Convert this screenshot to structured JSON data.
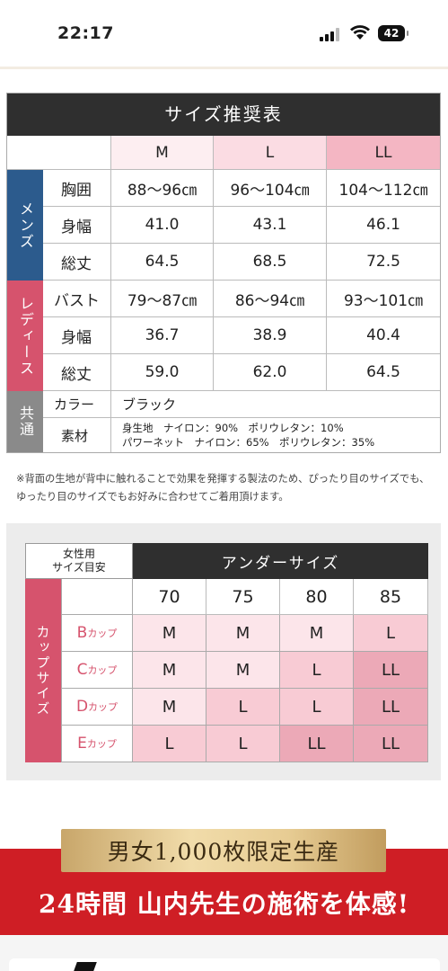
{
  "status": {
    "time": "22:17",
    "battery": "42"
  },
  "size_table": {
    "title": "サイズ推奨表",
    "sizes": [
      "M",
      "L",
      "LL"
    ],
    "groups": [
      {
        "name": "メンズ",
        "color": "#2c5b8d",
        "rows": [
          {
            "label": "胸囲",
            "values": [
              "88〜96㎝",
              "96〜104㎝",
              "104〜112㎝"
            ]
          },
          {
            "label": "身幅",
            "values": [
              "41.0",
              "43.1",
              "46.1"
            ]
          },
          {
            "label": "総丈",
            "values": [
              "64.5",
              "68.5",
              "72.5"
            ]
          }
        ]
      },
      {
        "name": "レディース",
        "color": "#d6536d",
        "rows": [
          {
            "label": "バスト",
            "values": [
              "79〜87㎝",
              "86〜94㎝",
              "93〜101㎝"
            ]
          },
          {
            "label": "身幅",
            "values": [
              "36.7",
              "38.9",
              "40.4"
            ]
          },
          {
            "label": "総丈",
            "values": [
              "59.0",
              "62.0",
              "64.5"
            ]
          }
        ]
      },
      {
        "name": "共通",
        "color": "#8a8a8a",
        "rows": [
          {
            "label": "カラー",
            "value": "ブラック"
          },
          {
            "label": "素材",
            "lines": [
              "身生地　ナイロン：90%　ポリウレタン：10%",
              "パワーネット　ナイロン：65%　ポリウレタン：35%"
            ]
          }
        ]
      }
    ],
    "note": "※背面の生地が背中に触れることで効果を発揮する製法のため、ぴったり目のサイズでも、ゆったり目のサイズでもお好みに合わせてご着用頂けます。"
  },
  "cup_table": {
    "corner_label": "女性用\nサイズ目安",
    "under_title": "アンダーサイズ",
    "side_title": "カップサイズ",
    "unders": [
      "70",
      "75",
      "80",
      "85"
    ],
    "rows": [
      {
        "cup": "B",
        "suffix": "カップ",
        "values": [
          "M",
          "M",
          "M",
          "L"
        ]
      },
      {
        "cup": "C",
        "suffix": "カップ",
        "values": [
          "M",
          "M",
          "L",
          "LL"
        ]
      },
      {
        "cup": "D",
        "suffix": "カップ",
        "values": [
          "M",
          "L",
          "L",
          "LL"
        ]
      },
      {
        "cup": "E",
        "suffix": "カップ",
        "values": [
          "L",
          "L",
          "LL",
          "LL"
        ]
      }
    ],
    "colors": {
      "M": "#fce5ea",
      "L": "#f8cbd4",
      "LL": "#eca9b7"
    }
  },
  "banner": {
    "badge": "男女1,000枚限定生産",
    "headline": "24時間 山内先生の施術を体感!"
  }
}
